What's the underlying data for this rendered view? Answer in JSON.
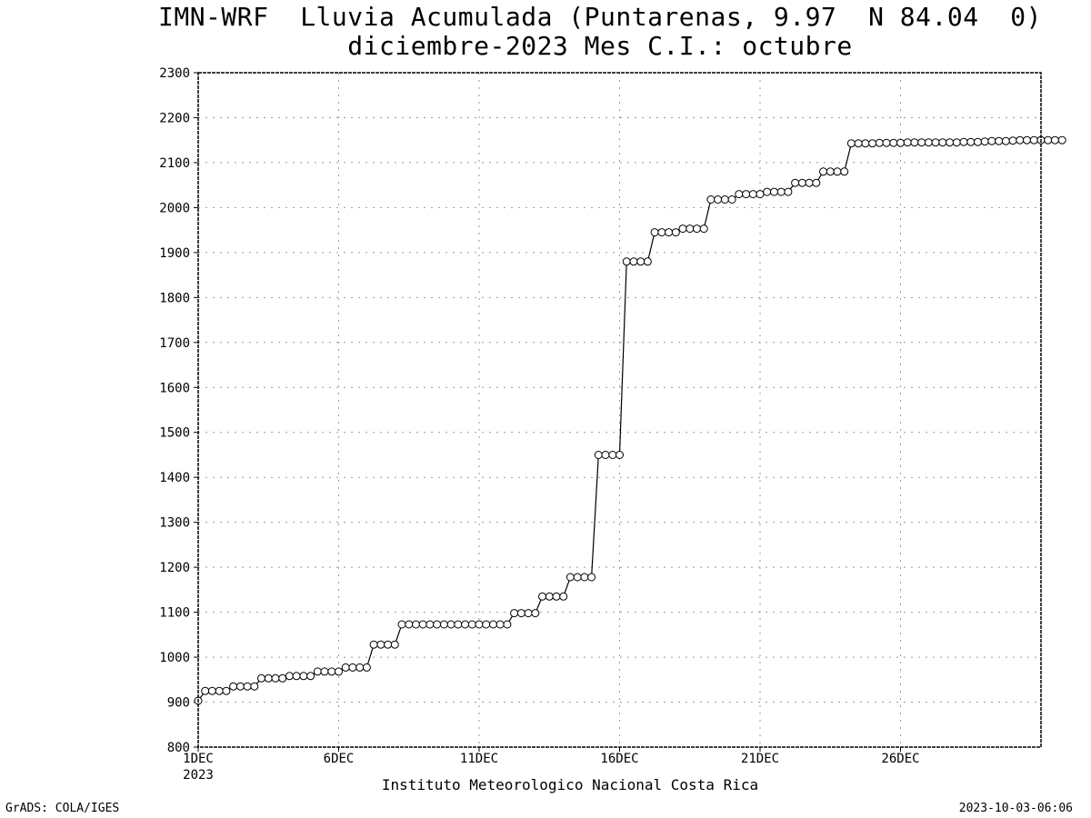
{
  "titles": {
    "line1": "IMN-WRF  Lluvia Acumulada (Puntarenas, 9.97  N 84.04  0)",
    "line2": "diciembre-2023 Mes C.I.: octubre"
  },
  "footer": {
    "left": "GrADS: COLA/IGES",
    "right": "2023-10-03-06:06"
  },
  "chart_data": {
    "type": "line",
    "title": "IMN-WRF  Lluvia Acumulada (Puntarenas, 9.97  N 84.04  0)",
    "subtitle": "diciembre-2023 Mes C.I.: octubre",
    "xlabel": "Instituto Meteorologico Nacional Costa Rica",
    "ylabel": "",
    "ylim": [
      800,
      2300
    ],
    "yticks": [
      800,
      900,
      1000,
      1100,
      1200,
      1300,
      1400,
      1500,
      1600,
      1700,
      1800,
      1900,
      2000,
      2100,
      2200,
      2300
    ],
    "xlim_days": [
      1,
      31
    ],
    "xticks": [
      {
        "day": 1,
        "label": "1DEC",
        "sublabel": "2023"
      },
      {
        "day": 6,
        "label": "6DEC"
      },
      {
        "day": 11,
        "label": "11DEC"
      },
      {
        "day": 16,
        "label": "16DEC"
      },
      {
        "day": 21,
        "label": "21DEC"
      },
      {
        "day": 26,
        "label": "26DEC"
      }
    ],
    "grid": true,
    "marker": "open-circle",
    "x_step_days": 0.25,
    "series": [
      {
        "values": [
          903,
          925,
          925,
          925,
          925,
          935,
          935,
          935,
          935,
          953,
          953,
          953,
          953,
          958,
          958,
          958,
          958,
          968,
          968,
          968,
          968,
          977,
          977,
          977,
          977,
          1028,
          1028,
          1028,
          1028,
          1073,
          1073,
          1073,
          1073,
          1073,
          1073,
          1073,
          1073,
          1073,
          1073,
          1073,
          1073,
          1073,
          1073,
          1073,
          1073,
          1098,
          1098,
          1098,
          1098,
          1135,
          1135,
          1135,
          1135,
          1178,
          1178,
          1178,
          1178,
          1450,
          1450,
          1450,
          1450,
          1880,
          1880,
          1880,
          1880,
          1945,
          1945,
          1945,
          1945,
          1953,
          1953,
          1953,
          1953,
          2018,
          2018,
          2018,
          2018,
          2030,
          2030,
          2030,
          2030,
          2035,
          2035,
          2035,
          2035,
          2055,
          2055,
          2055,
          2055,
          2080,
          2080,
          2080,
          2080,
          2143,
          2143,
          2143,
          2143,
          2144,
          2144,
          2144,
          2144,
          2145,
          2145,
          2145,
          2145,
          2145,
          2145,
          2145,
          2145,
          2146,
          2146,
          2146,
          2147,
          2148,
          2148,
          2148,
          2149,
          2150,
          2150,
          2150,
          2150,
          2150,
          2150,
          2150
        ]
      }
    ]
  }
}
